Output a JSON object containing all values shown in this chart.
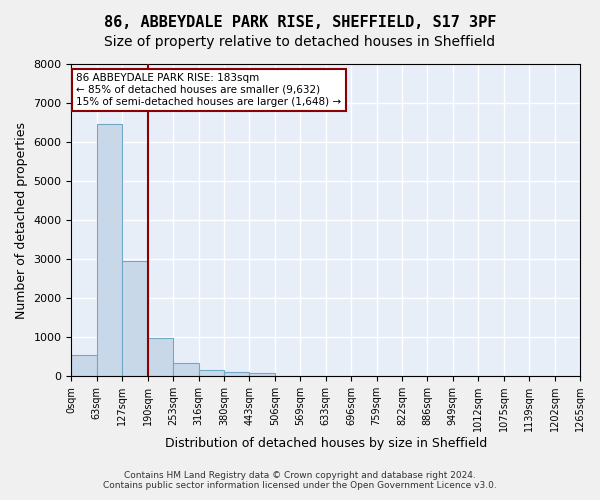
{
  "title_line1": "86, ABBEYDALE PARK RISE, SHEFFIELD, S17 3PF",
  "title_line2": "Size of property relative to detached houses in Sheffield",
  "xlabel": "Distribution of detached houses by size in Sheffield",
  "ylabel": "Number of detached properties",
  "footer_line1": "Contains HM Land Registry data © Crown copyright and database right 2024.",
  "footer_line2": "Contains public sector information licensed under the Open Government Licence v3.0.",
  "bin_labels": [
    "0sqm",
    "63sqm",
    "127sqm",
    "190sqm",
    "253sqm",
    "316sqm",
    "380sqm",
    "443sqm",
    "506sqm",
    "569sqm",
    "633sqm",
    "696sqm",
    "759sqm",
    "822sqm",
    "886sqm",
    "949sqm",
    "1012sqm",
    "1075sqm",
    "1139sqm",
    "1202sqm",
    "1265sqm"
  ],
  "bar_values": [
    550,
    6450,
    2950,
    970,
    340,
    160,
    120,
    90,
    0,
    0,
    0,
    0,
    0,
    0,
    0,
    0,
    0,
    0,
    0,
    0
  ],
  "bar_color": "#c8d8e8",
  "bar_edge_color": "#6fa8c8",
  "background_color": "#e8eef8",
  "grid_color": "#ffffff",
  "property_size": 183,
  "property_bin_index": 2,
  "vline_color": "#8b0000",
  "annotation_text_line1": "86 ABBEYDALE PARK RISE: 183sqm",
  "annotation_text_line2": "← 85% of detached houses are smaller (9,632)",
  "annotation_text_line3": "15% of semi-detached houses are larger (1,648) →",
  "annotation_box_color": "#8b0000",
  "ylim": [
    0,
    8000
  ],
  "xlim_left": -0.5,
  "title_fontsize": 11,
  "subtitle_fontsize": 10,
  "xlabel_fontsize": 9,
  "ylabel_fontsize": 9
}
